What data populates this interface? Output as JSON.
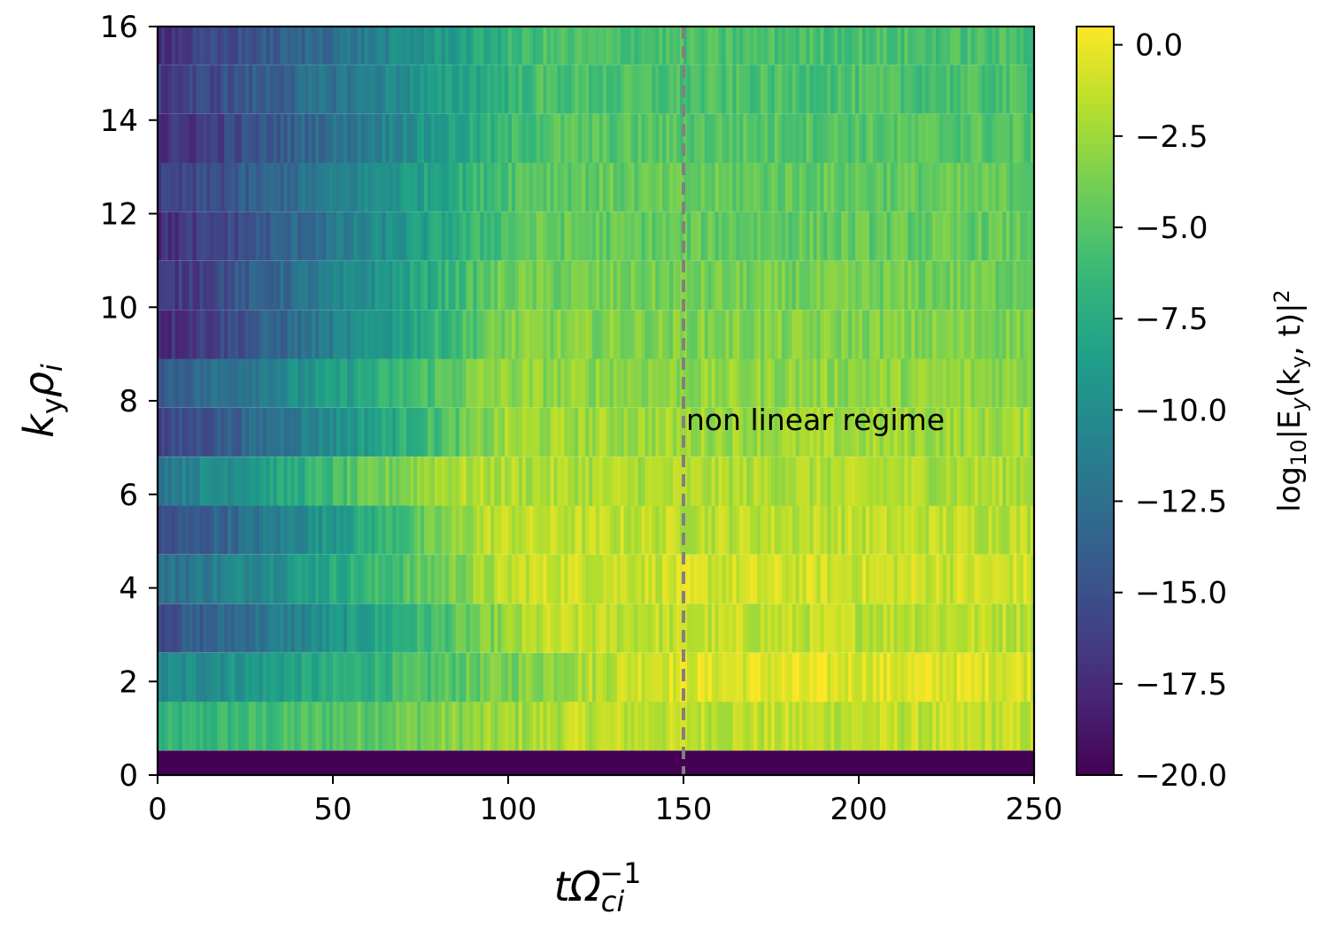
{
  "chart_data": {
    "type": "heatmap",
    "title": "",
    "xlabel": {
      "base": "tΩ",
      "sub": "ci",
      "sup": "−1"
    },
    "ylabel": {
      "k": "k",
      "k_sub": "y",
      "rho": "ρ",
      "rho_sub": "i"
    },
    "colorbar_label": {
      "prefix": "log",
      "prefix_sub": "10",
      "body": "|E",
      "body_sub": "y",
      "args": "(k",
      "args_sub": "y",
      "tail": ", t)|",
      "tail_sup": "2"
    },
    "xlim": [
      0,
      250
    ],
    "ylim": [
      0,
      16
    ],
    "x_ticks": [
      0,
      50,
      100,
      150,
      200,
      250
    ],
    "y_ticks": [
      0,
      2,
      4,
      6,
      8,
      10,
      12,
      14,
      16
    ],
    "colorbar_range": [
      -20.0,
      0.5
    ],
    "colorbar_ticks": [
      "0.0",
      "−2.5",
      "−5.0",
      "−7.5",
      "−10.0",
      "−12.5",
      "−15.0",
      "−17.5",
      "−20.0"
    ],
    "colorbar_tick_values": [
      0.0,
      -2.5,
      -5.0,
      -7.5,
      -10.0,
      -12.5,
      -15.0,
      -17.5,
      -20.0
    ],
    "colormap": "viridis",
    "row_height_ky": 1.047,
    "rows": [
      {
        "ky": 0.0,
        "start": -20.0,
        "sat": -20.0,
        "t_sat": 0
      },
      {
        "ky": 1.05,
        "start": -7.0,
        "sat": -1.5,
        "t_sat": 120
      },
      {
        "ky": 2.09,
        "start": -10.5,
        "sat": -0.5,
        "t_sat": 140
      },
      {
        "ky": 3.14,
        "start": -15.0,
        "sat": -1.5,
        "t_sat": 110
      },
      {
        "ky": 4.19,
        "start": -12.5,
        "sat": -1.0,
        "t_sat": 105
      },
      {
        "ky": 5.24,
        "start": -15.5,
        "sat": -1.5,
        "t_sat": 95
      },
      {
        "ky": 6.28,
        "start": -11.5,
        "sat": -2.0,
        "t_sat": 80
      },
      {
        "ky": 7.33,
        "start": -16.0,
        "sat": -2.5,
        "t_sat": 100
      },
      {
        "ky": 8.38,
        "start": -14.0,
        "sat": -3.0,
        "t_sat": 95
      },
      {
        "ky": 9.42,
        "start": -17.5,
        "sat": -3.5,
        "t_sat": 100
      },
      {
        "ky": 10.47,
        "start": -17.0,
        "sat": -4.0,
        "t_sat": 100
      },
      {
        "ky": 11.52,
        "start": -17.5,
        "sat": -4.5,
        "t_sat": 105
      },
      {
        "ky": 12.57,
        "start": -16.5,
        "sat": -4.5,
        "t_sat": 105
      },
      {
        "ky": 13.61,
        "start": -17.5,
        "sat": -5.0,
        "t_sat": 110
      },
      {
        "ky": 14.66,
        "start": -16.5,
        "sat": -5.5,
        "t_sat": 110
      },
      {
        "ky": 15.71,
        "start": -17.0,
        "sat": -5.5,
        "t_sat": 110
      }
    ],
    "vline": {
      "x": 150,
      "color": "#808080",
      "style": "dashed"
    },
    "annotation": {
      "text": "non linear regime",
      "x": 150,
      "y": 7.6
    }
  }
}
